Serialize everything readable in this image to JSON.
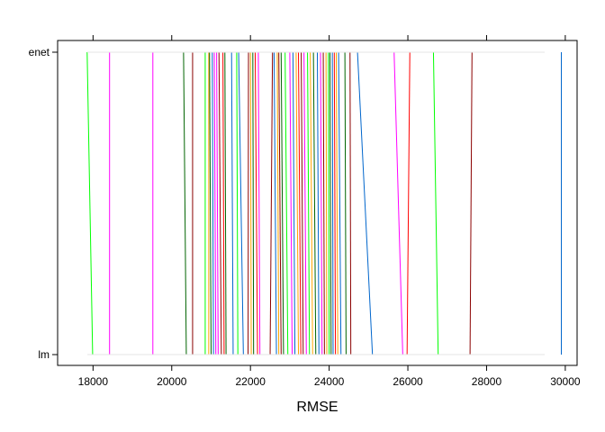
{
  "chart_data": {
    "type": "line",
    "subtype": "parallel-coordinates",
    "title": "",
    "xlabel": "RMSE",
    "ylabel": "",
    "categories": [
      "lm",
      "enet"
    ],
    "xlim": [
      17100,
      30300
    ],
    "x_ticks": [
      18000,
      20000,
      22000,
      24000,
      26000,
      28000,
      30000
    ],
    "x_tick_labels": [
      "18000",
      "20000",
      "22000",
      "24000",
      "26000",
      "28000",
      "30000"
    ],
    "grid": false,
    "legend": "none",
    "series": [
      {
        "color": "#00ff00",
        "values": [
          17990,
          17850
        ]
      },
      {
        "color": "#ff00ff",
        "values": [
          18420,
          18420
        ]
      },
      {
        "color": "#ff00ff",
        "values": [
          19520,
          19520
        ]
      },
      {
        "color": "#006400",
        "values": [
          20370,
          20300
        ]
      },
      {
        "color": "#8b0000",
        "values": [
          20530,
          20530
        ]
      },
      {
        "color": "#00ff00",
        "values": [
          20850,
          20850
        ]
      },
      {
        "color": "#ffa500",
        "values": [
          20940,
          20940
        ]
      },
      {
        "color": "#006400",
        "values": [
          21000,
          20960
        ]
      },
      {
        "color": "#0066cc",
        "values": [
          21060,
          21030
        ]
      },
      {
        "color": "#ff00ff",
        "values": [
          21120,
          21080
        ]
      },
      {
        "color": "#ff00ff",
        "values": [
          21180,
          21140
        ]
      },
      {
        "color": "#8b0000",
        "values": [
          21260,
          21200
        ]
      },
      {
        "color": "#ff0000",
        "values": [
          21330,
          21300
        ]
      },
      {
        "color": "#006400",
        "values": [
          21380,
          21350
        ]
      },
      {
        "color": "#0066cc",
        "values": [
          21560,
          21520
        ]
      },
      {
        "color": "#00ff00",
        "values": [
          21680,
          21650
        ]
      },
      {
        "color": "#0066cc",
        "values": [
          21820,
          21700
        ]
      },
      {
        "color": "#8b0000",
        "values": [
          21940,
          21950
        ]
      },
      {
        "color": "#ffa500",
        "values": [
          22020,
          22000
        ]
      },
      {
        "color": "#006400",
        "values": [
          22080,
          22060
        ]
      },
      {
        "color": "#ff0000",
        "values": [
          22180,
          22120
        ]
      },
      {
        "color": "#ff00ff",
        "values": [
          22240,
          22200
        ]
      },
      {
        "color": "#8b0000",
        "values": [
          22500,
          22560
        ]
      },
      {
        "color": "#0066cc",
        "values": [
          22660,
          22600
        ]
      },
      {
        "color": "#ffa500",
        "values": [
          22720,
          22680
        ]
      },
      {
        "color": "#8b0000",
        "values": [
          22780,
          22720
        ]
      },
      {
        "color": "#006400",
        "values": [
          22840,
          22780
        ]
      },
      {
        "color": "#00ff00",
        "values": [
          22950,
          22880
        ]
      },
      {
        "color": "#ff00ff",
        "values": [
          23060,
          23000
        ]
      },
      {
        "color": "#0066cc",
        "values": [
          23130,
          23080
        ]
      },
      {
        "color": "#ffa500",
        "values": [
          23220,
          23160
        ]
      },
      {
        "color": "#ff0000",
        "values": [
          23280,
          23220
        ]
      },
      {
        "color": "#8b0000",
        "values": [
          23340,
          23290
        ]
      },
      {
        "color": "#ff00ff",
        "values": [
          23420,
          23360
        ]
      },
      {
        "color": "#00ff00",
        "values": [
          23500,
          23450
        ]
      },
      {
        "color": "#ffa500",
        "values": [
          23580,
          23520
        ]
      },
      {
        "color": "#006400",
        "values": [
          23660,
          23600
        ]
      },
      {
        "color": "#0066cc",
        "values": [
          23740,
          23700
        ]
      },
      {
        "color": "#ff00ff",
        "values": [
          23820,
          23780
        ]
      },
      {
        "color": "#8b0000",
        "values": [
          23880,
          23850
        ]
      },
      {
        "color": "#ffa500",
        "values": [
          23940,
          23920
        ]
      },
      {
        "color": "#00ff00",
        "values": [
          24000,
          23980
        ]
      },
      {
        "color": "#006400",
        "values": [
          24050,
          24020
        ]
      },
      {
        "color": "#0066cc",
        "values": [
          24100,
          24080
        ]
      },
      {
        "color": "#ff0000",
        "values": [
          24160,
          24130
        ]
      },
      {
        "color": "#ffa500",
        "values": [
          24220,
          24180
        ]
      },
      {
        "color": "#0066cc",
        "values": [
          24300,
          24240
        ]
      },
      {
        "color": "#006400",
        "values": [
          24430,
          24400
        ]
      },
      {
        "color": "#8b0000",
        "values": [
          24550,
          24530
        ]
      },
      {
        "color": "#0066cc",
        "values": [
          25100,
          24720
        ]
      },
      {
        "color": "#ff00ff",
        "values": [
          25870,
          25650
        ]
      },
      {
        "color": "#ff0000",
        "values": [
          25980,
          26050
        ]
      },
      {
        "color": "#00ff00",
        "values": [
          26770,
          26650
        ]
      },
      {
        "color": "#8b0000",
        "values": [
          27580,
          27630
        ]
      },
      {
        "color": "#0066cc",
        "values": [
          29900,
          29900
        ]
      }
    ]
  }
}
